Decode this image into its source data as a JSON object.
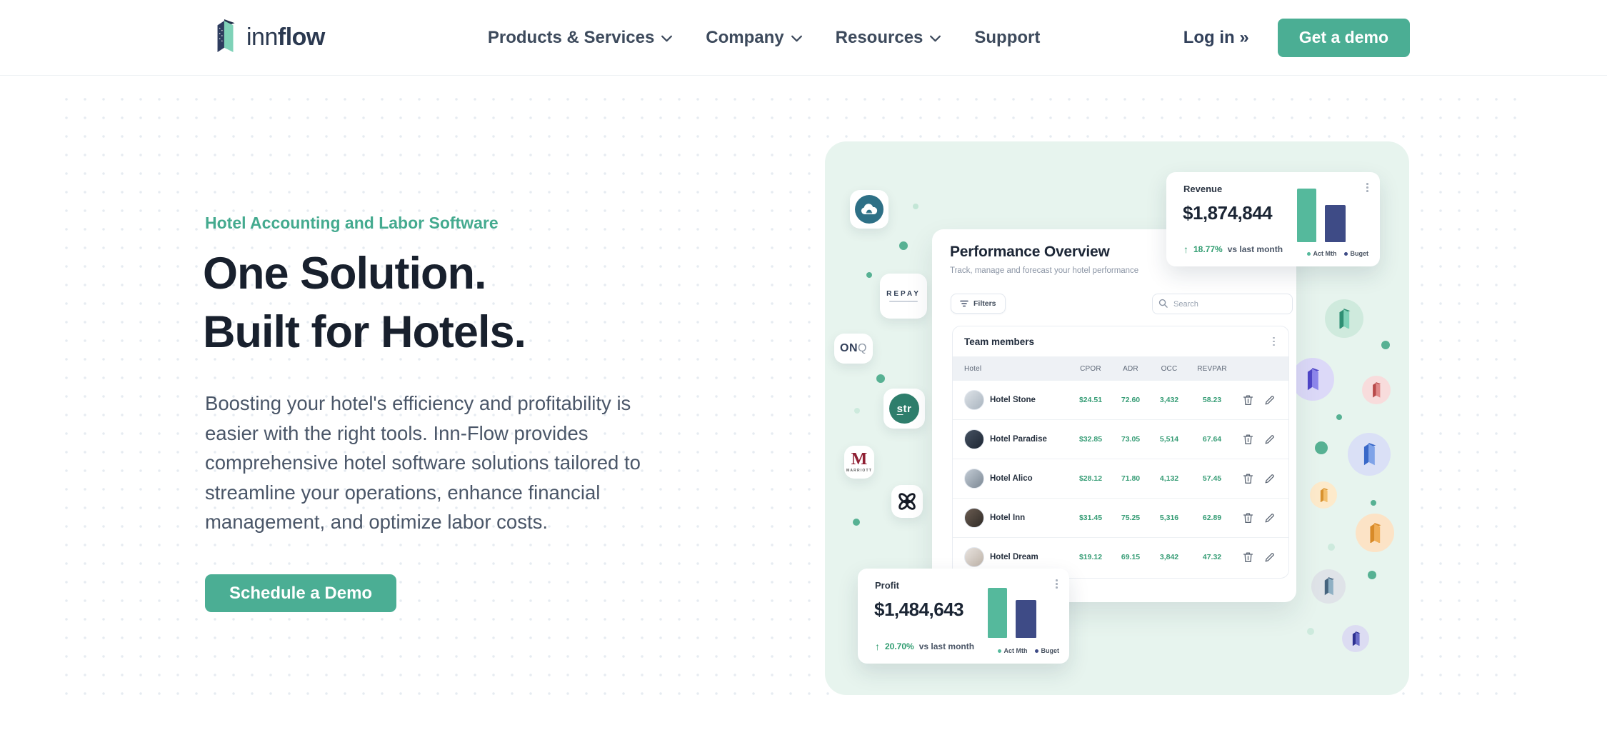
{
  "brand": {
    "name_regular": "inn",
    "name_bold": "flow"
  },
  "colors": {
    "teal_primary": "#4BAE94",
    "navy_heading": "#18202d",
    "slate_text": "#4a5668",
    "mint_bg": "#e7f4ee",
    "value_green": "#379d76",
    "bar_teal": "#55B99C",
    "bar_navy": "#3E4B86",
    "change_green": "#2f9c70"
  },
  "nav": {
    "items": [
      {
        "label": "Products & Services",
        "has_dropdown": true
      },
      {
        "label": "Company",
        "has_dropdown": true
      },
      {
        "label": "Resources",
        "has_dropdown": true
      },
      {
        "label": "Support",
        "has_dropdown": false
      }
    ],
    "login_label": "Log in »",
    "cta_label": "Get a demo"
  },
  "hero": {
    "eyebrow": "Hotel Accounting and Labor Software",
    "heading_line1": "One Solution.",
    "heading_line2": "Built for Hotels.",
    "paragraph": "Boosting your hotel's efficiency and profitability is easier with the right tools. Inn-Flow provides comprehensive hotel software solutions tailored to streamline your operations, enhance financial management, and optimize labor costs.",
    "cta_label": "Schedule a Demo"
  },
  "dashboard": {
    "title": "Performance Overview",
    "subtitle": "Track, manage and forecast your hotel performance",
    "filters_label": "Filters",
    "search_placeholder": "Search",
    "table": {
      "title": "Team members",
      "columns": [
        "Hotel",
        "CPOR",
        "ADR",
        "OCC",
        "REVPAR"
      ],
      "rows": [
        {
          "name": "Hotel Stone",
          "cpor": "$24.51",
          "adr": "72.60",
          "occ": "3,432",
          "revpar": "58.23"
        },
        {
          "name": "Hotel Paradise",
          "cpor": "$32.85",
          "adr": "73.05",
          "occ": "5,514",
          "revpar": "67.64"
        },
        {
          "name": "Hotel Alico",
          "cpor": "$28.12",
          "adr": "71.80",
          "occ": "4,132",
          "revpar": "57.45"
        },
        {
          "name": "Hotel Inn",
          "cpor": "$31.45",
          "adr": "75.25",
          "occ": "5,316",
          "revpar": "62.89"
        },
        {
          "name": "Hotel Dream",
          "cpor": "$19.12",
          "adr": "69.15",
          "occ": "3,842",
          "revpar": "47.32"
        }
      ]
    }
  },
  "stat_cards": {
    "revenue": {
      "title": "Revenue",
      "value": "$1,874,844",
      "change_arrow": "↑",
      "change_pct": "18.77%",
      "change_suffix": "vs last month",
      "legend": [
        "Act Mth",
        "Buget"
      ]
    },
    "profit": {
      "title": "Profit",
      "value": "$1,484,643",
      "change_arrow": "↑",
      "change_pct": "20.70%",
      "change_suffix": "vs last month",
      "legend": [
        "Act Mth",
        "Buget"
      ]
    }
  },
  "partner_logos": {
    "repay": "REPAY",
    "onq_on": "ON",
    "onq_q": "Q",
    "str_s": "s",
    "str_tr": "tr",
    "marriott_m": "M",
    "marriott_word": "MARRIOTT"
  },
  "chart_data": [
    {
      "type": "bar",
      "title": "Revenue mini chart",
      "categories": [
        "Act Mth",
        "Buget"
      ],
      "values": [
        100,
        69
      ],
      "unit": "relative %",
      "legend_position": "bottom"
    },
    {
      "type": "bar",
      "title": "Profit mini chart",
      "categories": [
        "Act Mth",
        "Buget"
      ],
      "values": [
        100,
        76
      ],
      "unit": "relative %",
      "legend_position": "bottom"
    }
  ]
}
